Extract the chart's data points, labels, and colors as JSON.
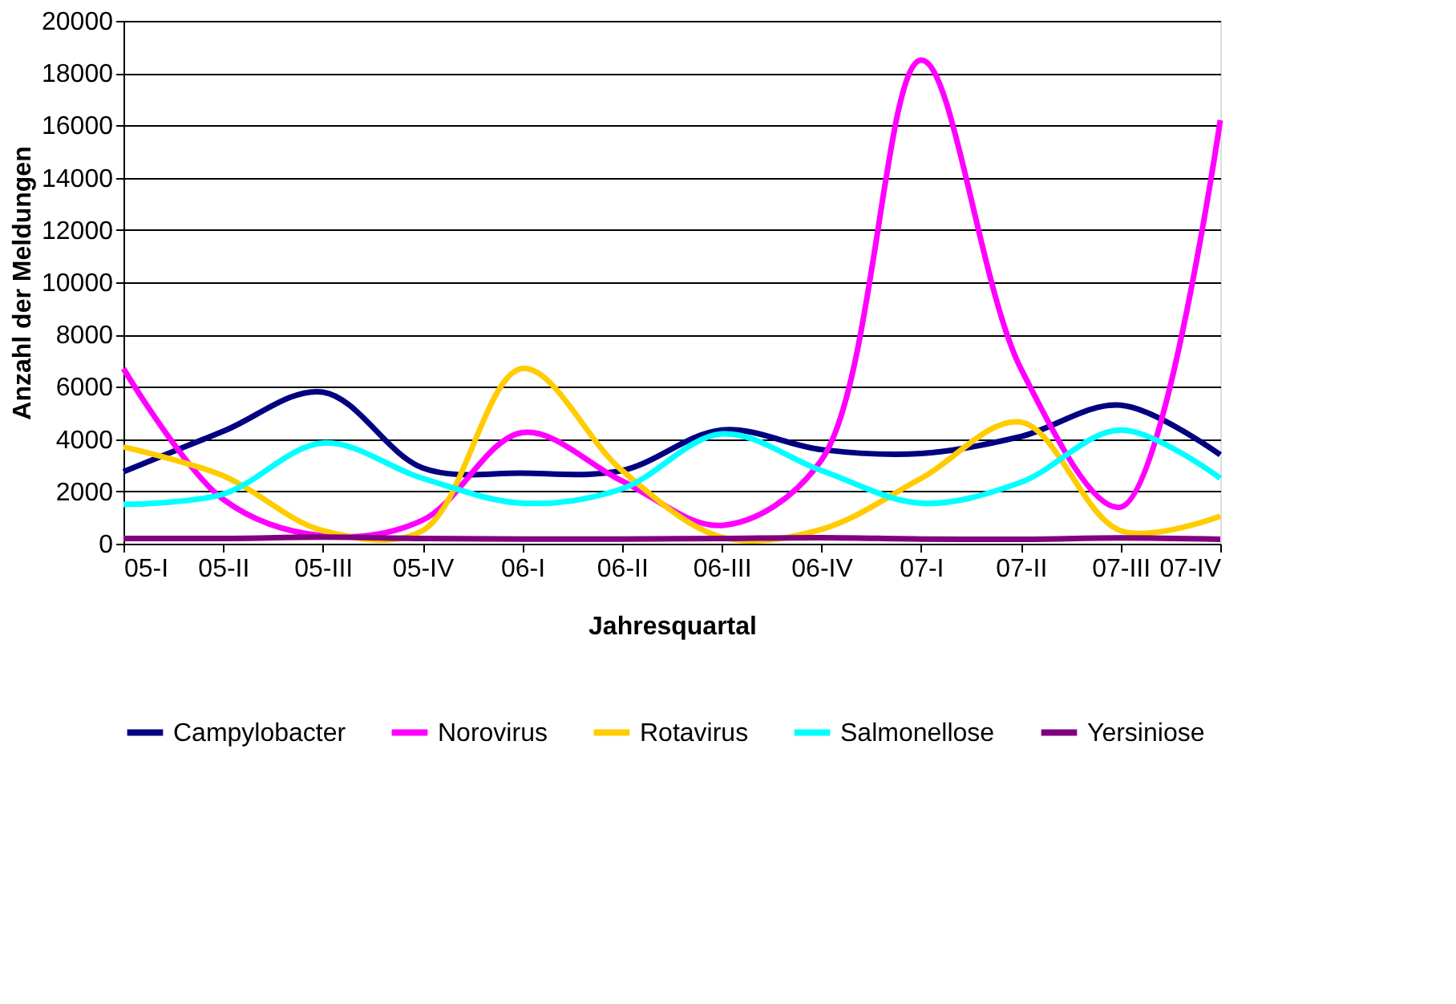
{
  "chart_data": {
    "type": "line",
    "xlabel": "Jahresquartal",
    "ylabel": "Anzahl der Meldungen",
    "categories": [
      "05-I",
      "05-II",
      "05-III",
      "05-IV",
      "06-I",
      "06-II",
      "06-III",
      "06-IV",
      "07-I",
      "07-II",
      "07-III",
      "07-IV"
    ],
    "ylim": [
      0,
      20000
    ],
    "yticks": [
      0,
      2000,
      4000,
      6000,
      8000,
      10000,
      12000,
      14000,
      16000,
      18000,
      20000
    ],
    "grid": "y",
    "legend": "bottom",
    "marker": "none",
    "line_style": "solid",
    "series": [
      {
        "name": "Campylobacter",
        "color": "#000080",
        "values": [
          2750,
          4300,
          5800,
          2900,
          2700,
          2800,
          4350,
          3600,
          3450,
          4100,
          5300,
          3400
        ]
      },
      {
        "name": "Norovirus",
        "color": "#ff00ff",
        "values": [
          6700,
          1700,
          300,
          900,
          4250,
          2400,
          700,
          3200,
          18500,
          6700,
          1400,
          16200
        ]
      },
      {
        "name": "Rotavirus",
        "color": "#ffcc00",
        "values": [
          3700,
          2600,
          500,
          500,
          6700,
          2800,
          250,
          550,
          2500,
          4650,
          500,
          1050
        ]
      },
      {
        "name": "Salmonellose",
        "color": "#00ffff",
        "values": [
          1500,
          1900,
          3850,
          2500,
          1550,
          2100,
          4200,
          2800,
          1550,
          2350,
          4350,
          2500
        ]
      },
      {
        "name": "Yersiniose",
        "color": "#800080",
        "values": [
          200,
          200,
          250,
          200,
          180,
          180,
          200,
          230,
          180,
          170,
          220,
          170
        ]
      }
    ]
  }
}
